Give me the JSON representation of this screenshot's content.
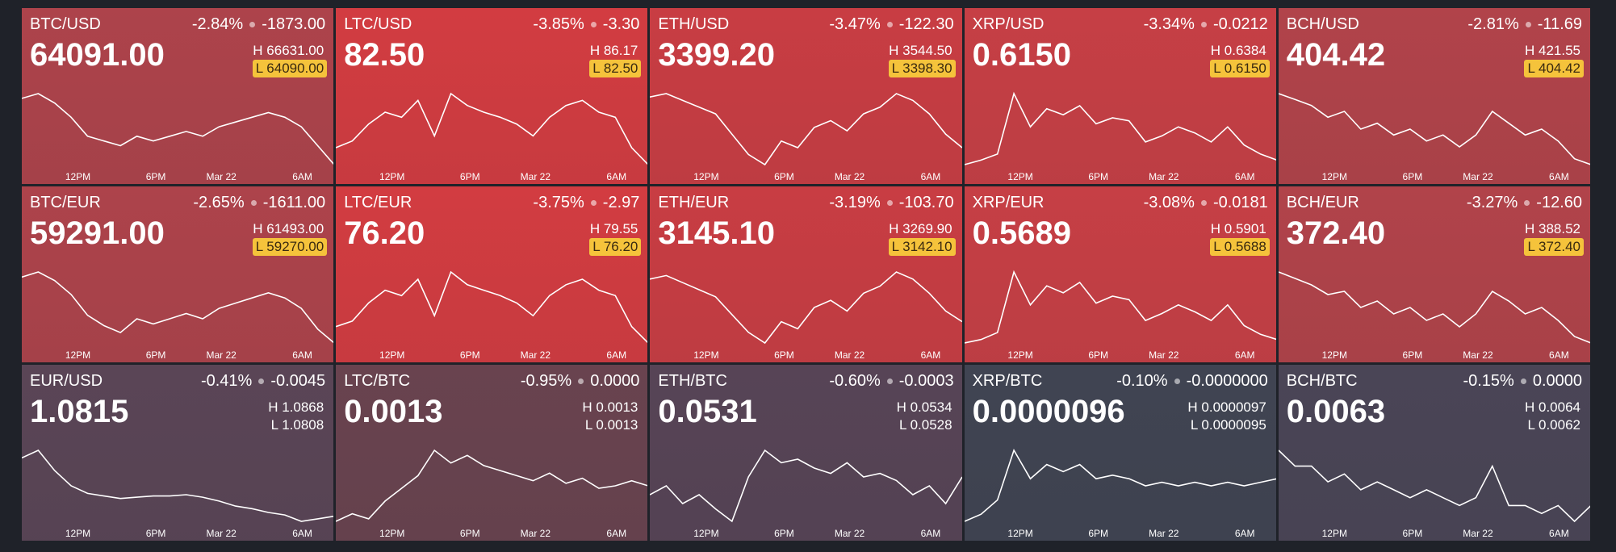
{
  "time_labels": [
    "12PM",
    "6PM",
    "Mar 22",
    "6AM"
  ],
  "tiles": [
    {
      "pair": "BTC/USD",
      "change_pct": "-2.84%",
      "change": "-1873.00",
      "price": "64091.00",
      "high": "66631.00",
      "low": "64090.00",
      "low_highlight": true,
      "color": "#ad434b",
      "values": [
        66140,
        66305,
        65975,
        65480,
        64820,
        64655,
        64490,
        64820,
        64655,
        64820,
        64985,
        64820,
        65150,
        65315,
        65480,
        65645,
        65480,
        65150,
        64490,
        63830
      ]
    },
    {
      "pair": "LTC/USD",
      "change_pct": "-3.85%",
      "change": "-3.30",
      "price": "82.50",
      "high": "86.17",
      "low": "82.50",
      "low_highlight": true,
      "color": "#d23c41",
      "values": [
        82.1,
        82.5,
        83.5,
        84.2,
        83.9,
        84.9,
        82.8,
        85.3,
        84.6,
        84.2,
        83.9,
        83.5,
        82.8,
        83.9,
        84.6,
        84.9,
        84.2,
        83.9,
        82.1,
        81.1
      ]
    },
    {
      "pair": "ETH/USD",
      "change_pct": "-3.47%",
      "change": "-122.30",
      "price": "3399.20",
      "high": "3544.50",
      "low": "3398.30",
      "low_highlight": true,
      "color": "#c83d43",
      "values": [
        3530,
        3540,
        3520,
        3500,
        3480,
        3420,
        3360,
        3330,
        3400,
        3380,
        3440,
        3460,
        3430,
        3480,
        3500,
        3540,
        3520,
        3480,
        3420,
        3380
      ]
    },
    {
      "pair": "XRP/USD",
      "change_pct": "-3.34%",
      "change": "-0.0212",
      "price": "0.6150",
      "high": "0.6384",
      "low": "0.6150",
      "low_highlight": true,
      "color": "#c63f45",
      "values": [
        0.603,
        0.606,
        0.61,
        0.65,
        0.628,
        0.64,
        0.636,
        0.642,
        0.63,
        0.634,
        0.632,
        0.618,
        0.622,
        0.628,
        0.624,
        0.618,
        0.628,
        0.616,
        0.61,
        0.606
      ]
    },
    {
      "pair": "BCH/USD",
      "change_pct": "-2.81%",
      "change": "-11.69",
      "price": "404.42",
      "high": "421.55",
      "low": "404.42",
      "low_highlight": true,
      "color": "#b1434a",
      "values": [
        424,
        422,
        420,
        416,
        418,
        412,
        414,
        410,
        412,
        408,
        410,
        406,
        410,
        418,
        414,
        410,
        412,
        408,
        402,
        400
      ]
    },
    {
      "pair": "BTC/EUR",
      "change_pct": "-2.65%",
      "change": "-1611.00",
      "price": "59291.00",
      "high": "61493.00",
      "low": "59270.00",
      "low_highlight": true,
      "color": "#ad434b",
      "values": [
        61100,
        61250,
        61000,
        60600,
        60000,
        59700,
        59500,
        59900,
        59750,
        59900,
        60050,
        59900,
        60200,
        60350,
        60500,
        60650,
        60500,
        60200,
        59600,
        59200
      ]
    },
    {
      "pair": "LTC/EUR",
      "change_pct": "-3.75%",
      "change": "-2.97",
      "price": "76.20",
      "high": "79.55",
      "low": "76.20",
      "low_highlight": true,
      "color": "#d23c41",
      "values": [
        75.9,
        76.2,
        77.2,
        77.9,
        77.6,
        78.5,
        76.5,
        78.9,
        78.2,
        77.9,
        77.6,
        77.2,
        76.5,
        77.6,
        78.2,
        78.5,
        77.9,
        77.6,
        75.9,
        75.0
      ]
    },
    {
      "pair": "ETH/EUR",
      "change_pct": "-3.19%",
      "change": "-103.70",
      "price": "3145.10",
      "high": "3269.90",
      "low": "3142.10",
      "low_highlight": true,
      "color": "#c83d43",
      "values": [
        3240,
        3250,
        3230,
        3210,
        3190,
        3140,
        3090,
        3060,
        3120,
        3100,
        3160,
        3180,
        3150,
        3200,
        3220,
        3260,
        3240,
        3200,
        3150,
        3120
      ]
    },
    {
      "pair": "XRP/EUR",
      "change_pct": "-3.08%",
      "change": "-0.0181",
      "price": "0.5689",
      "high": "0.5901",
      "low": "0.5688",
      "low_highlight": true,
      "color": "#c63f45",
      "values": [
        0.555,
        0.557,
        0.561,
        0.596,
        0.577,
        0.588,
        0.584,
        0.59,
        0.578,
        0.582,
        0.58,
        0.568,
        0.572,
        0.577,
        0.573,
        0.568,
        0.577,
        0.565,
        0.56,
        0.557
      ]
    },
    {
      "pair": "BCH/EUR",
      "change_pct": "-3.27%",
      "change": "-12.60",
      "price": "372.40",
      "high": "388.52",
      "low": "372.40",
      "low_highlight": true,
      "color": "#b1434a",
      "values": [
        384,
        382,
        380,
        377,
        378,
        373,
        375,
        371,
        373,
        369,
        371,
        367,
        371,
        378,
        375,
        371,
        373,
        369,
        364,
        362
      ]
    },
    {
      "pair": "EUR/USD",
      "change_pct": "-0.41%",
      "change": "-0.0045",
      "price": "1.0815",
      "high": "1.0868",
      "low": "1.0808",
      "low_highlight": false,
      "color": "#5a4556",
      "values": [
        1.086,
        1.0866,
        1.085,
        1.0838,
        1.0832,
        1.083,
        1.0828,
        1.0829,
        1.083,
        1.083,
        1.0831,
        1.0829,
        1.0826,
        1.0822,
        1.082,
        1.0817,
        1.0815,
        1.081,
        1.0812,
        1.0814
      ]
    },
    {
      "pair": "LTC/BTC",
      "change_pct": "-0.95%",
      "change": "0.0000",
      "price": "0.0013",
      "high": "0.0013",
      "low": "0.0013",
      "low_highlight": false,
      "color": "#69434f",
      "values": [
        0.001282,
        0.001285,
        0.001283,
        0.00129,
        0.001295,
        0.0013,
        0.00131,
        0.001305,
        0.001308,
        0.001304,
        0.001302,
        0.0013,
        0.001298,
        0.001301,
        0.001297,
        0.001299,
        0.001295,
        0.001296,
        0.001298,
        0.001296
      ]
    },
    {
      "pair": "ETH/BTC",
      "change_pct": "-0.60%",
      "change": "-0.0003",
      "price": "0.0531",
      "high": "0.0534",
      "low": "0.0528",
      "low_highlight": false,
      "color": "#574456",
      "values": [
        0.053,
        0.05305,
        0.05295,
        0.053,
        0.05292,
        0.05285,
        0.0531,
        0.05325,
        0.05318,
        0.0532,
        0.05315,
        0.05312,
        0.05318,
        0.0531,
        0.05312,
        0.05308,
        0.053,
        0.05305,
        0.05295,
        0.0531
      ]
    },
    {
      "pair": "XRP/BTC",
      "change_pct": "-0.10%",
      "change": "-0.0000000",
      "price": "0.0000096",
      "high": "0.0000097",
      "low": "0.0000095",
      "low_highlight": false,
      "color": "#404452",
      "values": [
        9.5e-06,
        9.52e-06,
        9.56e-06,
        9.7e-06,
        9.62e-06,
        9.66e-06,
        9.64e-06,
        9.66e-06,
        9.62e-06,
        9.63e-06,
        9.62e-06,
        9.6e-06,
        9.61e-06,
        9.6e-06,
        9.61e-06,
        9.6e-06,
        9.61e-06,
        9.6e-06,
        9.61e-06,
        9.62e-06
      ]
    },
    {
      "pair": "BCH/BTC",
      "change_pct": "-0.15%",
      "change": "0.0000",
      "price": "0.0063",
      "high": "0.0064",
      "low": "0.0062",
      "low_highlight": false,
      "color": "#4a4556",
      "values": [
        0.0064,
        0.00636,
        0.00636,
        0.00632,
        0.00634,
        0.0063,
        0.00632,
        0.0063,
        0.00628,
        0.0063,
        0.00628,
        0.00626,
        0.00628,
        0.00636,
        0.00626,
        0.00626,
        0.00624,
        0.00626,
        0.00622,
        0.00626
      ]
    }
  ]
}
